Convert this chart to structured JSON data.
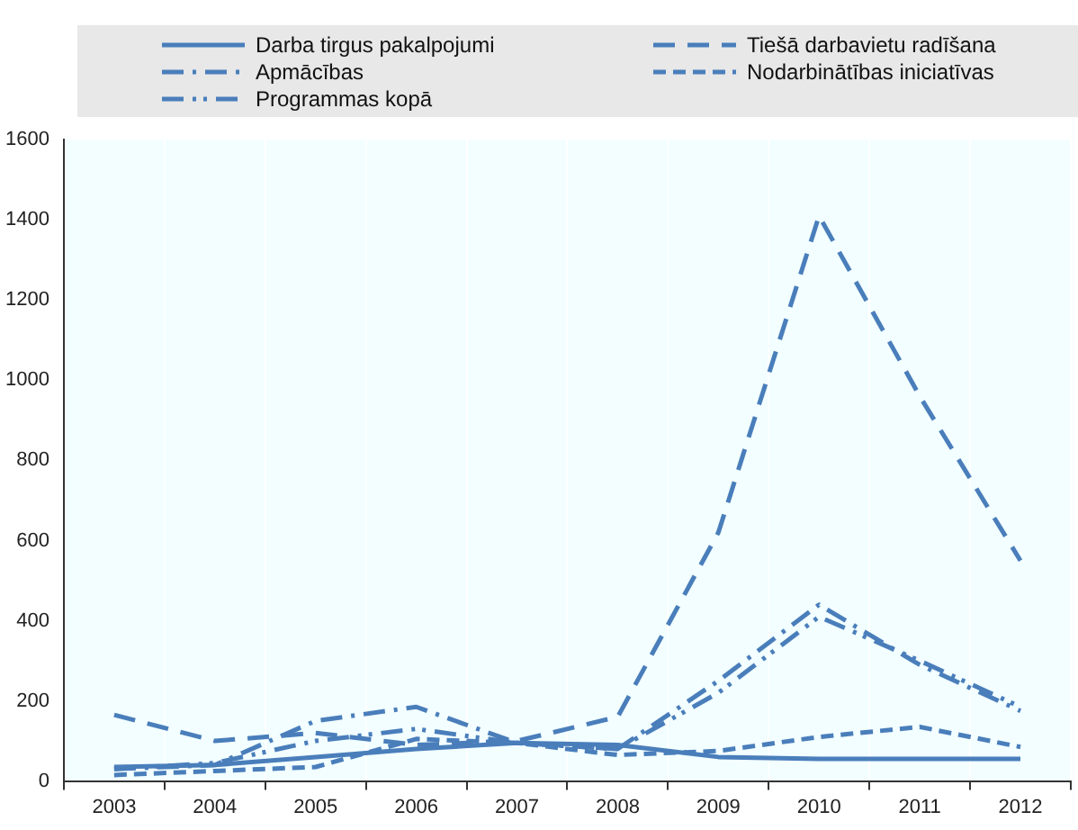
{
  "chart_data": {
    "type": "line",
    "categories": [
      "2003",
      "2004",
      "2005",
      "2006",
      "2007",
      "2008",
      "2009",
      "2010",
      "2011",
      "2012"
    ],
    "series": [
      {
        "name": "Darba tirgus pakalpojumi",
        "color": "#4a7ebb",
        "line_style": "solid",
        "values": [
          35,
          40,
          60,
          80,
          95,
          90,
          60,
          55,
          55,
          55
        ]
      },
      {
        "name": "Tiešā darbavietu radīšana",
        "color": "#4a7ebb",
        "line_style": "dashed",
        "values": [
          165,
          100,
          120,
          90,
          100,
          160,
          620,
          1410,
          960,
          550
        ]
      },
      {
        "name": "Apmācības",
        "color": "#4a7ebb",
        "line_style": "dashed",
        "values": [
          30,
          40,
          150,
          185,
          95,
          80,
          250,
          440,
          290,
          175
        ]
      },
      {
        "name": "Nodarbinātības iniciatīvas",
        "color": "#4a7ebb",
        "line_style": "dashed",
        "values": [
          15,
          25,
          35,
          105,
          95,
          65,
          75,
          110,
          135,
          85
        ]
      },
      {
        "name": "Programmas kopā",
        "color": "#4a7ebb",
        "line_style": "dashed",
        "values": [
          30,
          45,
          100,
          130,
          95,
          80,
          220,
          410,
          300,
          185
        ]
      }
    ],
    "ylim": [
      0,
      1600
    ],
    "yticks": [
      0,
      200,
      400,
      600,
      800,
      1000,
      1200,
      1400,
      1600
    ],
    "grid": "x",
    "legend": "top",
    "marker": "none"
  }
}
